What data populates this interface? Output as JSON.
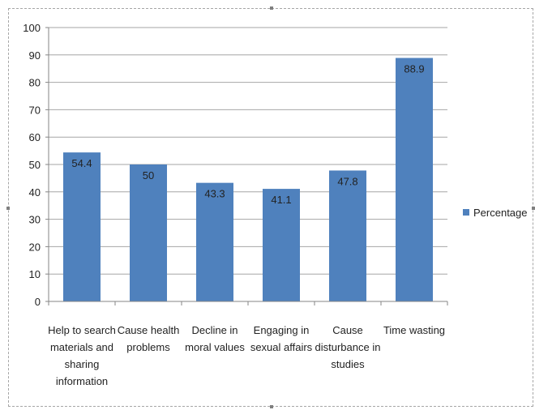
{
  "chart_data": {
    "type": "bar",
    "title": "",
    "xlabel": "",
    "ylabel": "",
    "categories": [
      [
        "Help to search",
        "materials and",
        "sharing",
        "information"
      ],
      [
        "Cause health",
        "problems"
      ],
      [
        "Decline in",
        "moral values"
      ],
      [
        "Engaging in",
        "sexual affairs"
      ],
      [
        "Cause",
        "disturbance in",
        "studies"
      ],
      [
        "Time wasting"
      ]
    ],
    "series": [
      {
        "name": "Percentage",
        "values": [
          54.4,
          50,
          43.3,
          41.1,
          47.8,
          88.9
        ],
        "color": "#4f81bd"
      }
    ],
    "data_labels": [
      "54.4",
      "50",
      "43.3",
      "41.1",
      "47.8",
      "88.9"
    ],
    "ylim": [
      0,
      100
    ],
    "y_ticks": [
      0,
      10,
      20,
      30,
      40,
      50,
      60,
      70,
      80,
      90,
      100
    ],
    "grid": true,
    "legend_position": "right",
    "legend_entries": [
      "Percentage"
    ]
  }
}
